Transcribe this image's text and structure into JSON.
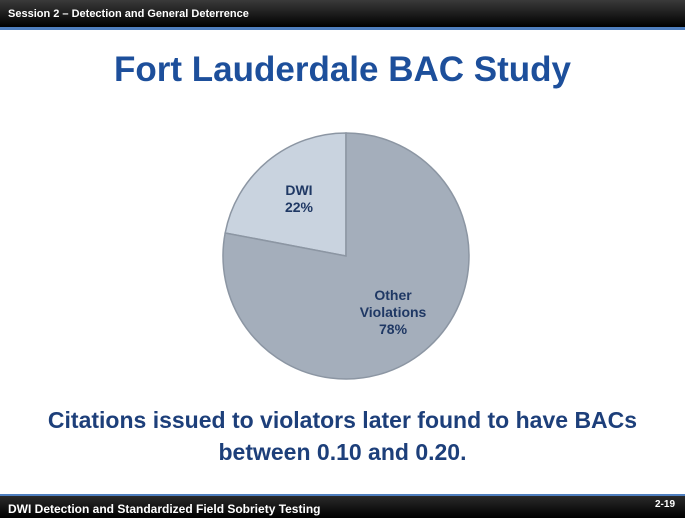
{
  "header": "Session 2 – Detection and General Deterrence",
  "footer": "DWI Detection and Standardized Field Sobriety Testing",
  "page_number": "2-19",
  "chart_data": {
    "type": "pie",
    "title": "Fort Lauderdale BAC Study",
    "caption": "Citations issued to violators later found to have BACs between 0.10 and 0.20.",
    "categories": [
      "DWI",
      "Other Violations"
    ],
    "values": [
      22,
      78
    ],
    "value_labels": [
      "22%",
      "78%"
    ],
    "colors": [
      "#c9d3df",
      "#a4aebb"
    ]
  }
}
